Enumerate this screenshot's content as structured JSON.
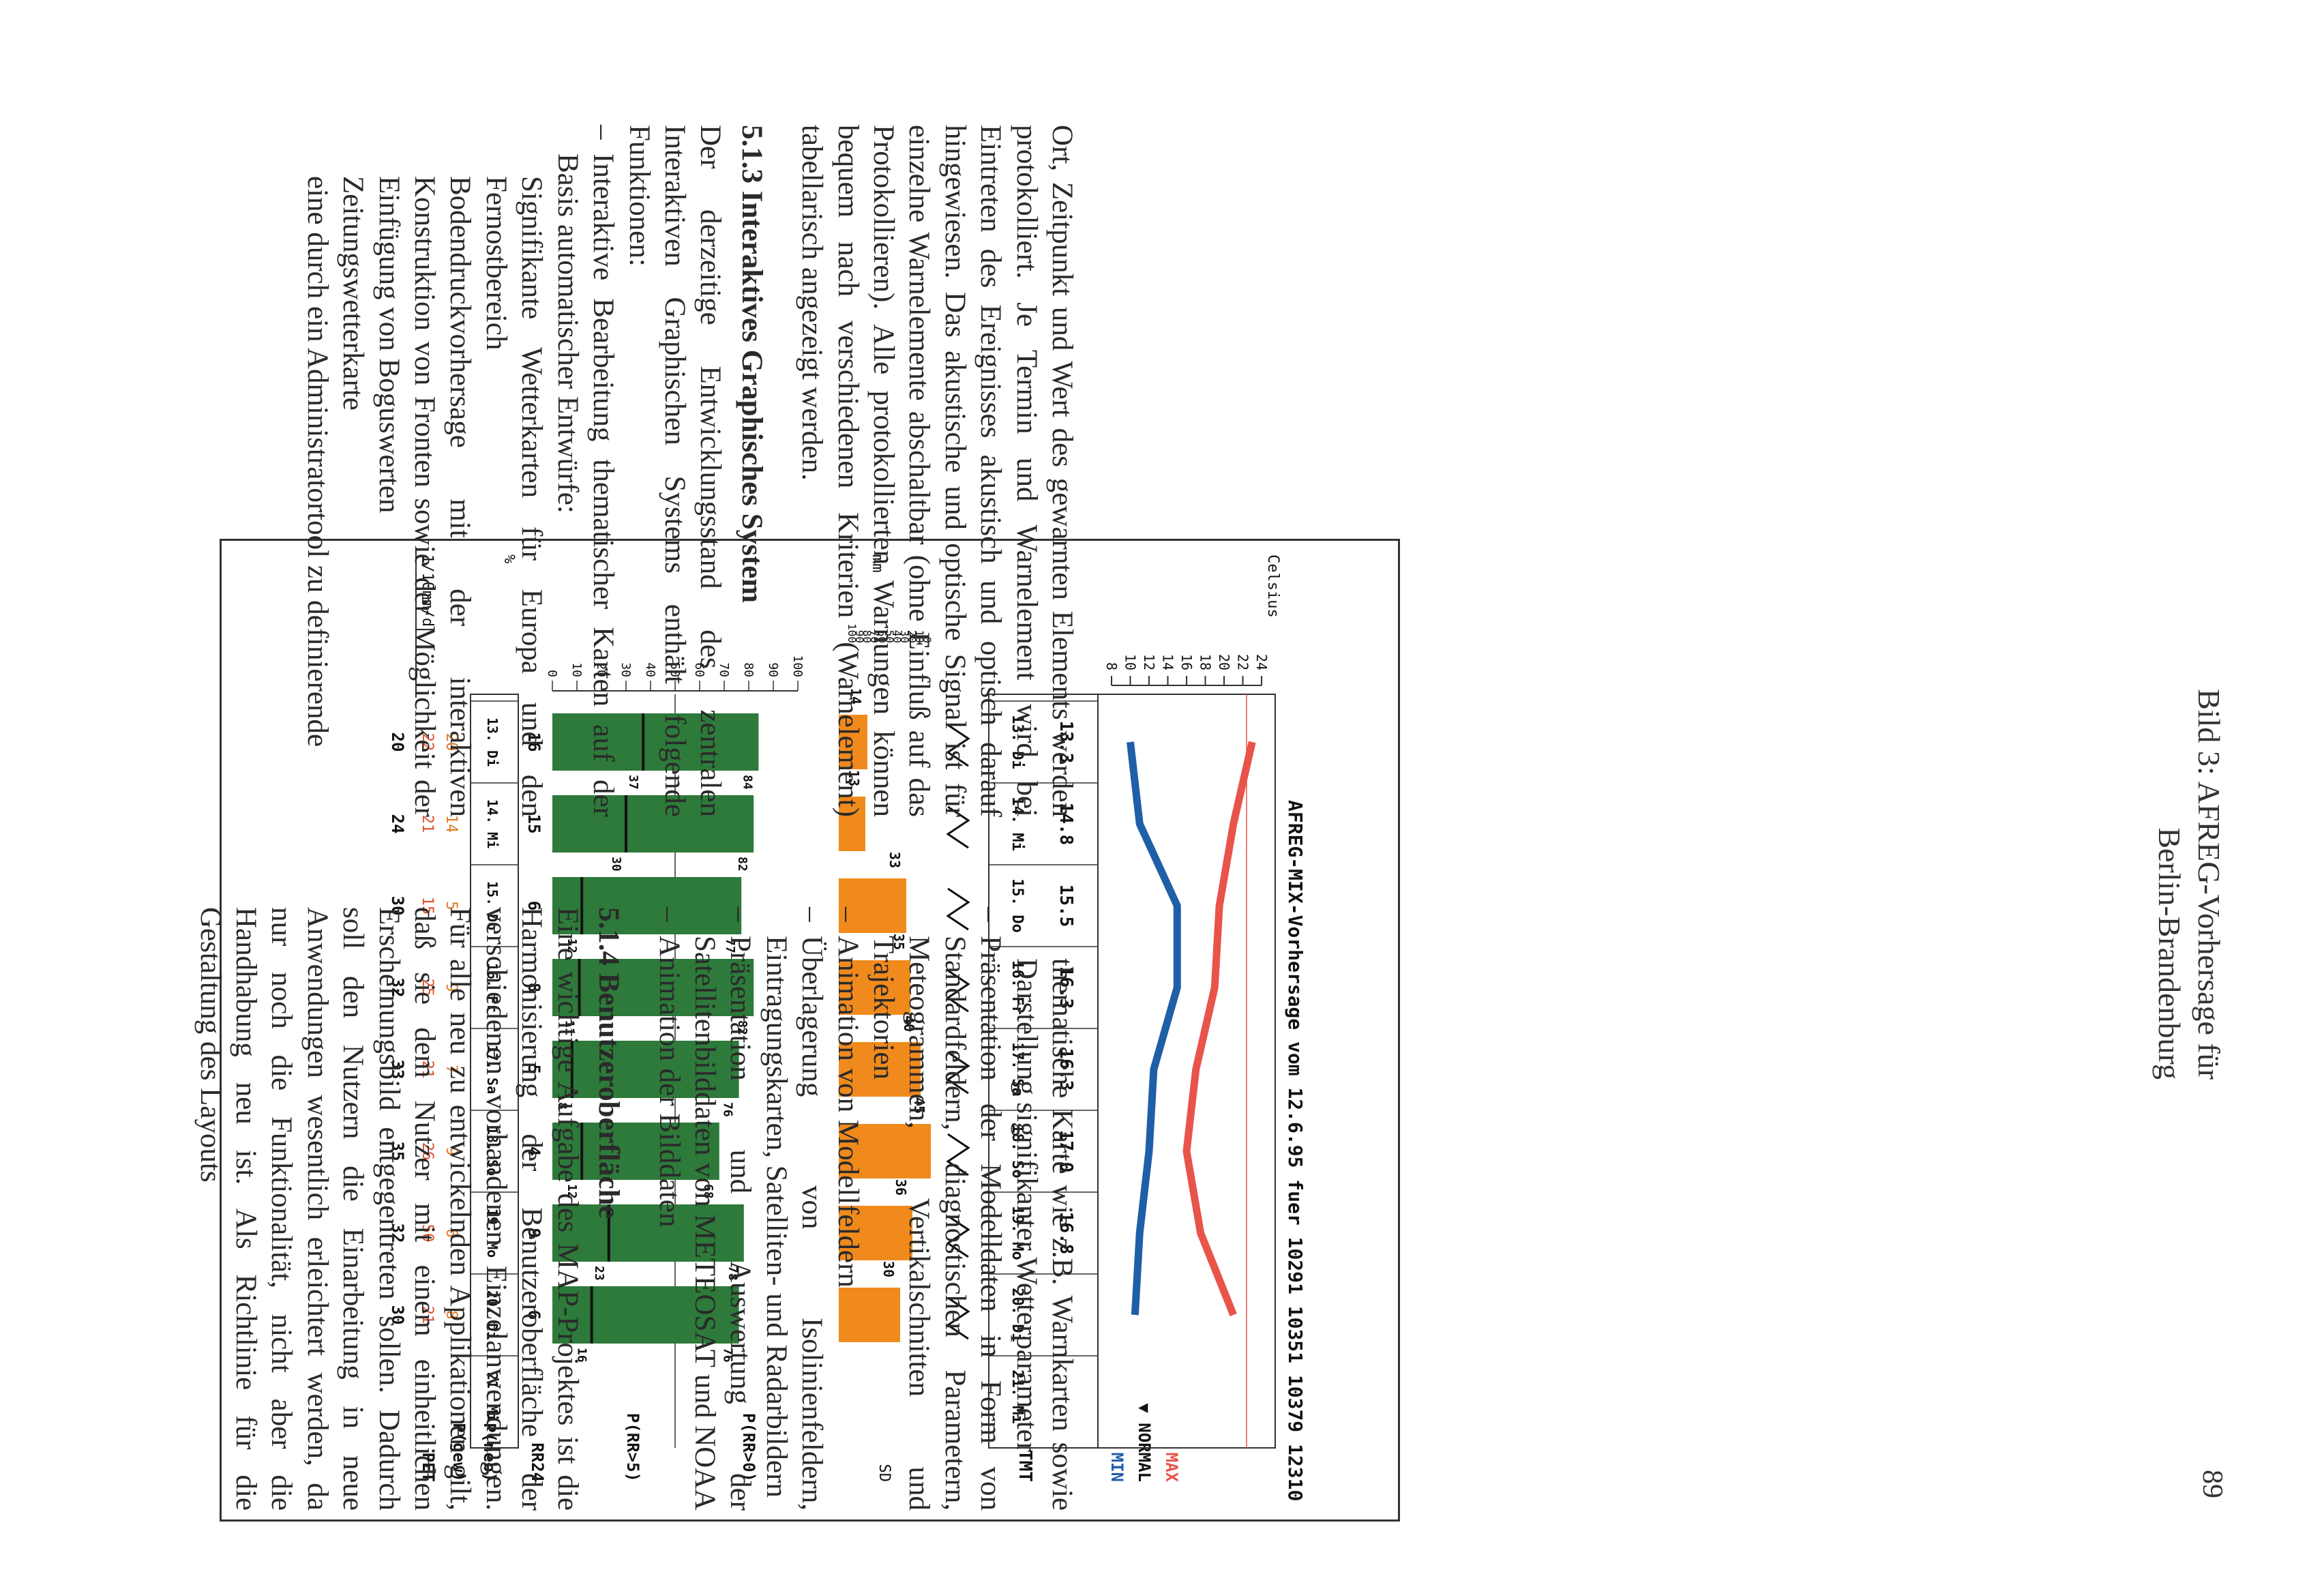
{
  "caption": {
    "line1": "Bild 3: AFREG-Vorhersage für",
    "line2": "Berlin-Brandenburg"
  },
  "page_number": "89",
  "chart": {
    "title": "AFREG-MIX-Vorhersage vom 12.6.95 fuer 10291 10351 10379 12310",
    "right_labels": {
      "max": "MAX",
      "normal": "▼ NORMAL",
      "min": "MIN",
      "tmt": "TMT",
      "sd": "SD",
      "p_rr_0": "P(RR>0)",
      "p_rr_5": "P(RR>5)",
      "rr24": "RR24",
      "p_neb": "P(neb)",
      "p_gew": "P(gew)",
      "pet": "PET"
    },
    "left_labels": {
      "celsius": "Celsius",
      "mm": "mm",
      "percent": "%",
      "mm_per_day": "1/10mm/d"
    },
    "temp_axis_ticks": [
      "24",
      "22",
      "20",
      "18",
      "16",
      "14",
      "12",
      "10",
      "8"
    ],
    "sd_axis_ticks": [
      "0",
      "10",
      "20",
      "30",
      "40",
      "50",
      "60",
      "70",
      "80",
      "90",
      "100"
    ],
    "p_axis_ticks": [
      "100",
      "90",
      "80",
      "70",
      "60",
      "50",
      "40",
      "30",
      "20",
      "10",
      "0"
    ],
    "chart_data": {
      "type": "bar",
      "days": [
        "13. Di",
        "14. Mi",
        "15. Do",
        "16. Fr",
        "17. Sa",
        "18. So",
        "19. Mo",
        "20. Di",
        "21. Mi"
      ],
      "tmt": [
        "13.3",
        "14.8",
        "15.5",
        "16.3",
        "16.3",
        "17.0",
        "16.8",
        "",
        ""
      ],
      "tmax": [
        23,
        21,
        19.5,
        19,
        17,
        16,
        17.5,
        21,
        null
      ],
      "tmin": [
        10,
        11,
        15,
        15,
        12.5,
        12,
        11,
        10.5,
        null
      ],
      "sd": [
        14,
        13,
        33,
        35,
        40,
        45,
        36,
        30,
        null
      ],
      "p_rr0": [
        84,
        82,
        77,
        82,
        76,
        68,
        78,
        76,
        null
      ],
      "p_rr5": [
        37,
        30,
        12,
        11,
        8,
        12,
        23,
        16,
        null
      ],
      "rr24": [
        "16",
        "15",
        "6",
        "8",
        "5",
        "4",
        "9",
        "6",
        ""
      ],
      "p_neb": [
        "20",
        "14",
        "5",
        "9",
        "7",
        "9",
        "6",
        "8",
        ""
      ],
      "p_gew": [
        "22",
        "21",
        "15",
        "25",
        "21",
        "26",
        "50",
        "21",
        ""
      ],
      "pet": [
        "20",
        "24",
        "30",
        "32",
        "33",
        "35",
        "32",
        "30",
        ""
      ],
      "colors": {
        "max": "#e8544a",
        "min": "#1f5fa8",
        "sd": "#f08a1c",
        "p_rr": "#2d7a3a"
      }
    }
  },
  "left_column": {
    "para1": "Ort, Zeitpunkt und Wert des gewarnten Elements werden protokolliert. Je Termin und Warnelement wird bei Eintreten des Ereignisses akustisch und optisch darauf hingewiesen. Das akustische und optische Signal ist für einzelne Warnelemente abschaltbar (ohne Einfluß auf das Protokollieren). Alle protokollierten Warnungen können bequem nach verschiedenen Kriterien (Warnelement) tabellarisch angezeigt werden.",
    "heading": "5.1.3 Interaktives Graphisches System",
    "para2": "Der derzeitige Entwicklungsstand des zentralen Interaktiven Graphischen Systems enthält folgende Funktionen:",
    "bullet1": "Interaktive Bearbeitung thematischer Karten auf der Basis automatischer Entwürfe:",
    "sub_items": [
      "Signifikante Wetterkarten für Europa und den Fernostbereich",
      "Bodendruckvorhersage mit der interaktiven Konstruktion von Fronten sowie der Möglichkeit der Einfügung von Boguswerten",
      "Zeitungswetterkarte",
      "eine durch ein Administratortool zu definierende"
    ]
  },
  "right_column": {
    "cont": "thematische Karte wie z.B. Warnkarten sowie Darstellung signifikanter Wetterparameter",
    "bullets": [
      "Präsentation der Modelldaten in Form von Standardfeldern, diagnostischen Parametern, Meteogrammen, Vertikalschnitten und Trajektorien",
      "Animation von Modellfeldern",
      "Überlagerung von Isolinienfeldern, Eintragungskarten, Satelliten- und Radarbildern",
      "Präsentation und Auswertung der Satellitenbilddaten von METEOSAT und NOAA",
      "Animation der Bilddaten"
    ],
    "heading": "5.1.4 Benutzeroberfläche",
    "para": "Eine wichtige Aufgabe des MAP-Projektes ist die Harmonisierung der Benutzeroberfläche der verschiedenen vorhandenen Einzelanwendungen. Für alle neu zu entwickelnden Applikationen gilt, daß sie dem Nutzer mit einem einheitlichen Erscheinungsbild entgegentreten sollen. Dadurch soll den Nutzern die Einarbeitung in neue Anwendungen wesentlich erleichtert werden, da nur noch die Funktionalität, nicht aber die Handhabung neu ist. Als Richtlinie für die Gestaltung des Layouts"
  }
}
